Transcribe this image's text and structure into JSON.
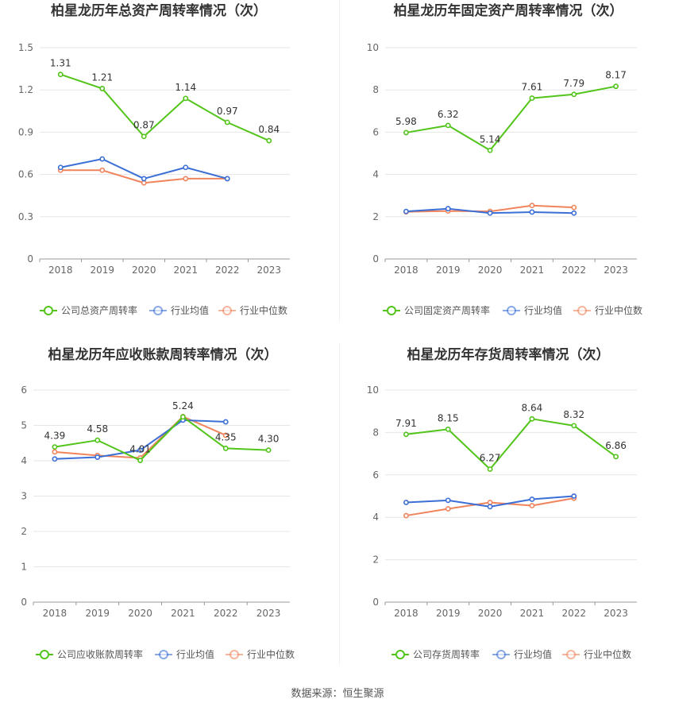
{
  "source_label": "数据来源：恒生聚源",
  "colors": {
    "company": "#52c41a",
    "avg": "#3b6fd6",
    "median": "#f0845c",
    "grid": "#e6e6e6",
    "axis": "#555555"
  },
  "chart_data": [
    {
      "type": "line",
      "title": "柏星龙历年总资产周转率情况（次）",
      "categories": [
        "2018",
        "2019",
        "2020",
        "2021",
        "2022",
        "2023"
      ],
      "ylim": [
        0,
        1.5
      ],
      "yticks": [
        "0",
        "0.3",
        "0.6",
        "0.9",
        "1.2",
        "1.5"
      ],
      "ytick_values": [
        0,
        0.3,
        0.6,
        0.9,
        1.2,
        1.5
      ],
      "series": [
        {
          "name": "公司总资产周转率",
          "role": "company",
          "values": [
            1.31,
            1.21,
            0.87,
            1.14,
            0.97,
            0.84
          ],
          "labels": [
            "1.31",
            "1.21",
            "0.87",
            "1.14",
            "0.97",
            "0.84"
          ]
        },
        {
          "name": "行业均值",
          "role": "avg",
          "values": [
            0.65,
            0.71,
            0.57,
            0.65,
            0.57,
            null
          ]
        },
        {
          "name": "行业中位数",
          "role": "median",
          "values": [
            0.63,
            0.63,
            0.54,
            0.57,
            0.57,
            null
          ]
        }
      ]
    },
    {
      "type": "line",
      "title": "柏星龙历年固定资产周转率情况（次）",
      "categories": [
        "2018",
        "2019",
        "2020",
        "2021",
        "2022",
        "2023"
      ],
      "ylim": [
        0,
        10
      ],
      "yticks": [
        "0",
        "2",
        "4",
        "6",
        "8",
        "10"
      ],
      "ytick_values": [
        0,
        2,
        4,
        6,
        8,
        10
      ],
      "series": [
        {
          "name": "公司固定资产周转率",
          "role": "company",
          "values": [
            5.98,
            6.32,
            5.14,
            7.61,
            7.79,
            8.17
          ],
          "labels": [
            "5.98",
            "6.32",
            "5.14",
            "7.61",
            "7.79",
            "8.17"
          ]
        },
        {
          "name": "行业均值",
          "role": "avg",
          "values": [
            2.25,
            2.38,
            2.17,
            2.22,
            2.17,
            null
          ]
        },
        {
          "name": "行业中位数",
          "role": "median",
          "values": [
            2.23,
            2.27,
            2.25,
            2.53,
            2.44,
            null
          ]
        }
      ]
    },
    {
      "type": "line",
      "title": "柏星龙历年应收账款周转率情况（次）",
      "categories": [
        "2018",
        "2019",
        "2020",
        "2021",
        "2022",
        "2023"
      ],
      "ylim": [
        0,
        6
      ],
      "yticks": [
        "0",
        "1",
        "2",
        "3",
        "4",
        "5",
        "6"
      ],
      "ytick_values": [
        0,
        1,
        2,
        3,
        4,
        5,
        6
      ],
      "series": [
        {
          "name": "公司应收账款周转率",
          "role": "company",
          "values": [
            4.39,
            4.58,
            4.01,
            5.24,
            4.35,
            4.3
          ],
          "labels": [
            "4.39",
            "4.58",
            "4.01",
            "5.24",
            "4.35",
            "4.30"
          ]
        },
        {
          "name": "行业均值",
          "role": "avg",
          "values": [
            4.05,
            4.1,
            4.3,
            5.15,
            5.1,
            null
          ]
        },
        {
          "name": "行业中位数",
          "role": "median",
          "values": [
            4.25,
            4.15,
            4.08,
            5.25,
            4.72,
            null
          ]
        }
      ]
    },
    {
      "type": "line",
      "title": "柏星龙历年存货周转率情况（次）",
      "categories": [
        "2018",
        "2019",
        "2020",
        "2021",
        "2022",
        "2023"
      ],
      "ylim": [
        0,
        10
      ],
      "yticks": [
        "0",
        "2",
        "4",
        "6",
        "8",
        "10"
      ],
      "ytick_values": [
        0,
        2,
        4,
        6,
        8,
        10
      ],
      "series": [
        {
          "name": "公司存货周转率",
          "role": "company",
          "values": [
            7.91,
            8.15,
            6.27,
            8.64,
            8.32,
            6.86
          ],
          "labels": [
            "7.91",
            "8.15",
            "6.27",
            "8.64",
            "8.32",
            "6.86"
          ]
        },
        {
          "name": "行业均值",
          "role": "avg",
          "values": [
            4.7,
            4.8,
            4.5,
            4.85,
            5.0,
            null
          ]
        },
        {
          "name": "行业中位数",
          "role": "median",
          "values": [
            4.08,
            4.4,
            4.7,
            4.55,
            4.9,
            null
          ]
        }
      ]
    }
  ]
}
